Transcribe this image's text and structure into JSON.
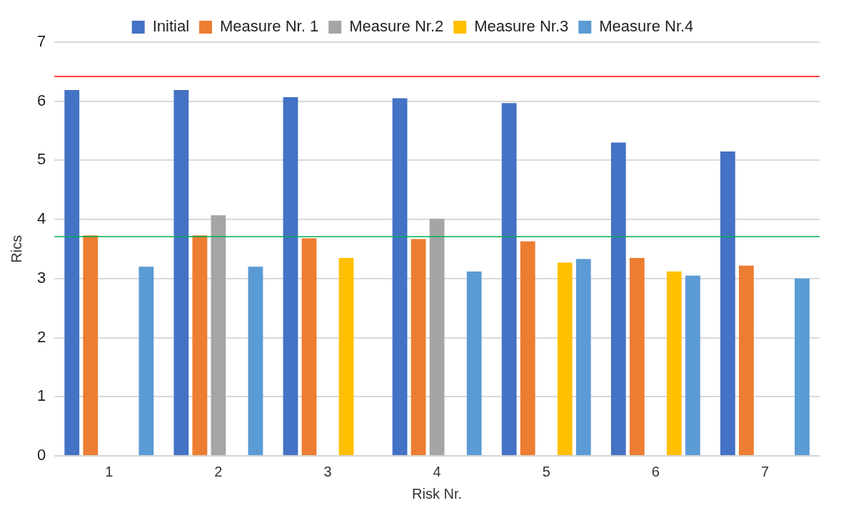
{
  "chart_data": {
    "type": "bar",
    "xlabel": "Risk Nr.",
    "ylabel": "Rics",
    "categories": [
      "1",
      "2",
      "3",
      "4",
      "5",
      "6",
      "7"
    ],
    "series": [
      {
        "name": "Initial",
        "color": "#4472c4",
        "values": [
          6.19,
          6.19,
          6.07,
          6.05,
          5.97,
          5.3,
          5.15
        ]
      },
      {
        "name": "Measure Nr. 1",
        "color": "#ed7d31",
        "values": [
          3.73,
          3.73,
          3.68,
          3.67,
          3.63,
          3.35,
          3.22
        ]
      },
      {
        "name": "Measure Nr.2",
        "color": "#a5a5a5",
        "values": [
          null,
          4.07,
          null,
          4.01,
          null,
          null,
          null
        ]
      },
      {
        "name": "Measure Nr.3",
        "color": "#ffc000",
        "values": [
          null,
          null,
          3.35,
          null,
          3.27,
          3.12,
          null
        ]
      },
      {
        "name": "Measure Nr.4",
        "color": "#5b9bd5",
        "values": [
          3.2,
          3.2,
          null,
          3.12,
          3.33,
          3.05,
          3.0
        ]
      }
    ],
    "ylim": [
      0,
      7
    ],
    "yticks": [
      0,
      1,
      2,
      3,
      4,
      5,
      6,
      7
    ],
    "grid": "y",
    "legend": "top",
    "ref_lines": [
      {
        "axis": "y",
        "value": 6.42,
        "color": "#ff0000"
      },
      {
        "axis": "y",
        "value": 3.71,
        "color": "#00b050"
      }
    ]
  }
}
